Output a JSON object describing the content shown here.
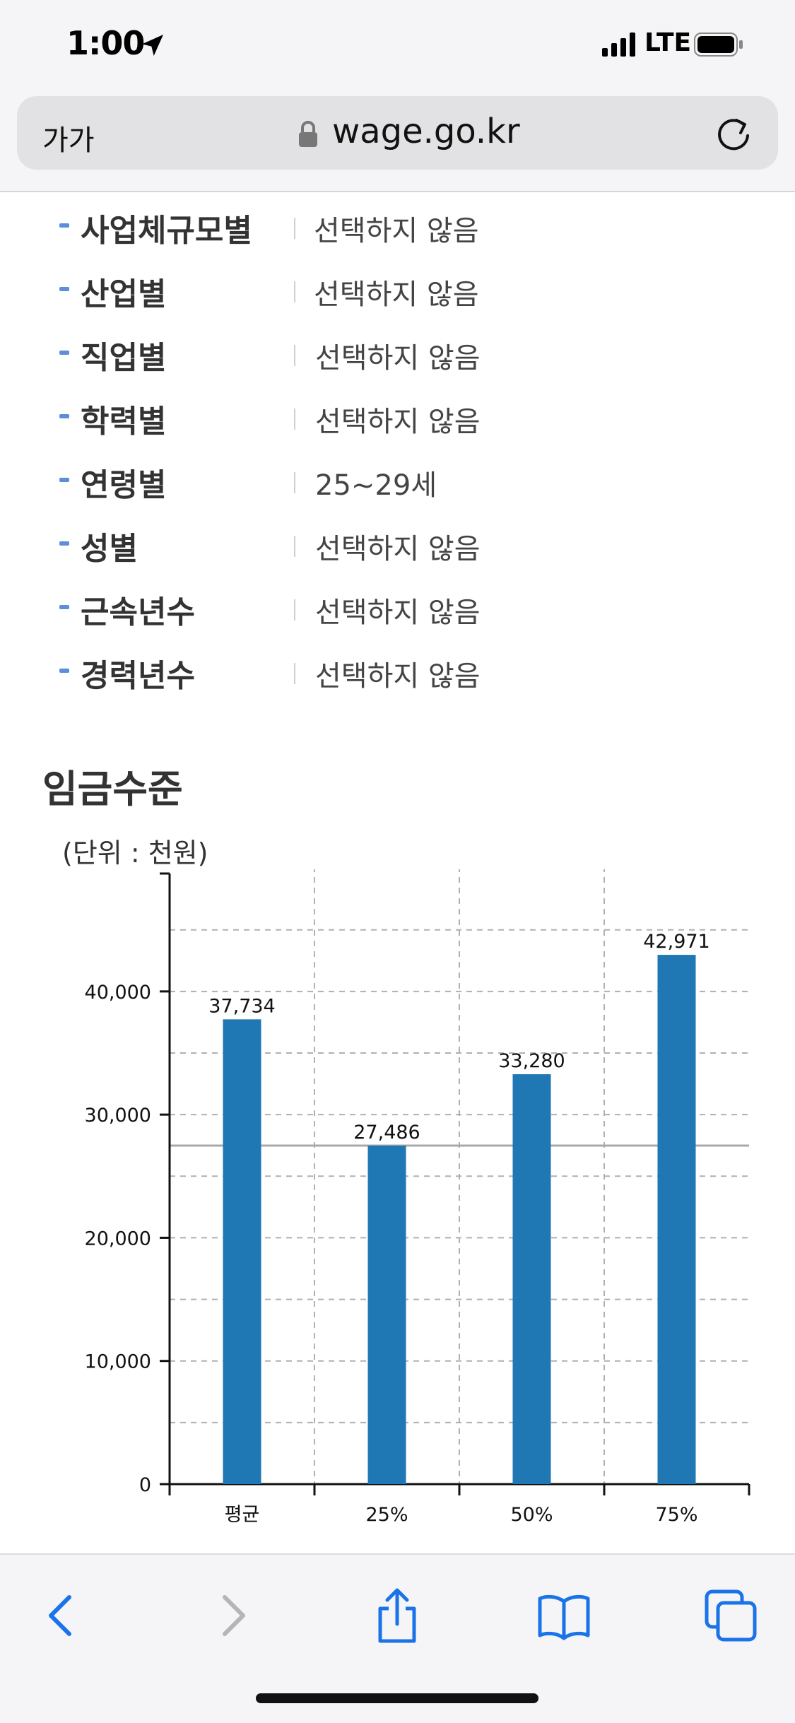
{
  "status_bar": {
    "time": "1:00",
    "carrier": "LTE"
  },
  "browser": {
    "aa_label": "가가",
    "url": "wage.go.kr"
  },
  "filters": [
    {
      "label": "사업체규모별",
      "value": "선택하지 않음"
    },
    {
      "label": "산업별",
      "value": "선택하지 않음"
    },
    {
      "label": "직업별",
      "value": "선택하지 않음"
    },
    {
      "label": "학력별",
      "value": "선택하지 않음"
    },
    {
      "label": "연령별",
      "value": "25~29세"
    },
    {
      "label": "성별",
      "value": "선택하지 않음"
    },
    {
      "label": "근속년수",
      "value": "선택하지 않음"
    },
    {
      "label": "경력년수",
      "value": "선택하지 않음"
    }
  ],
  "section": {
    "title": "임금수준",
    "unit": "(단위 : 천원)"
  },
  "chart_data": {
    "type": "bar",
    "categories": [
      "평균",
      "25%",
      "50%",
      "75%"
    ],
    "values": [
      37734,
      27486,
      33280,
      42971
    ],
    "value_labels": [
      "37,734",
      "27,486",
      "33,280",
      "42,971"
    ],
    "ylim": [
      0,
      49000
    ],
    "yticks": [
      0,
      10000,
      20000,
      30000,
      40000
    ],
    "ytick_labels": [
      "0",
      "10,000",
      "20,000",
      "30,000",
      "40,000"
    ],
    "reference_line": 27486,
    "grid": true,
    "bar_color": "#1f77b4"
  },
  "toolbar": {
    "icons": [
      "back-icon",
      "forward-icon",
      "share-icon",
      "bookmarks-icon",
      "tabs-icon"
    ]
  }
}
